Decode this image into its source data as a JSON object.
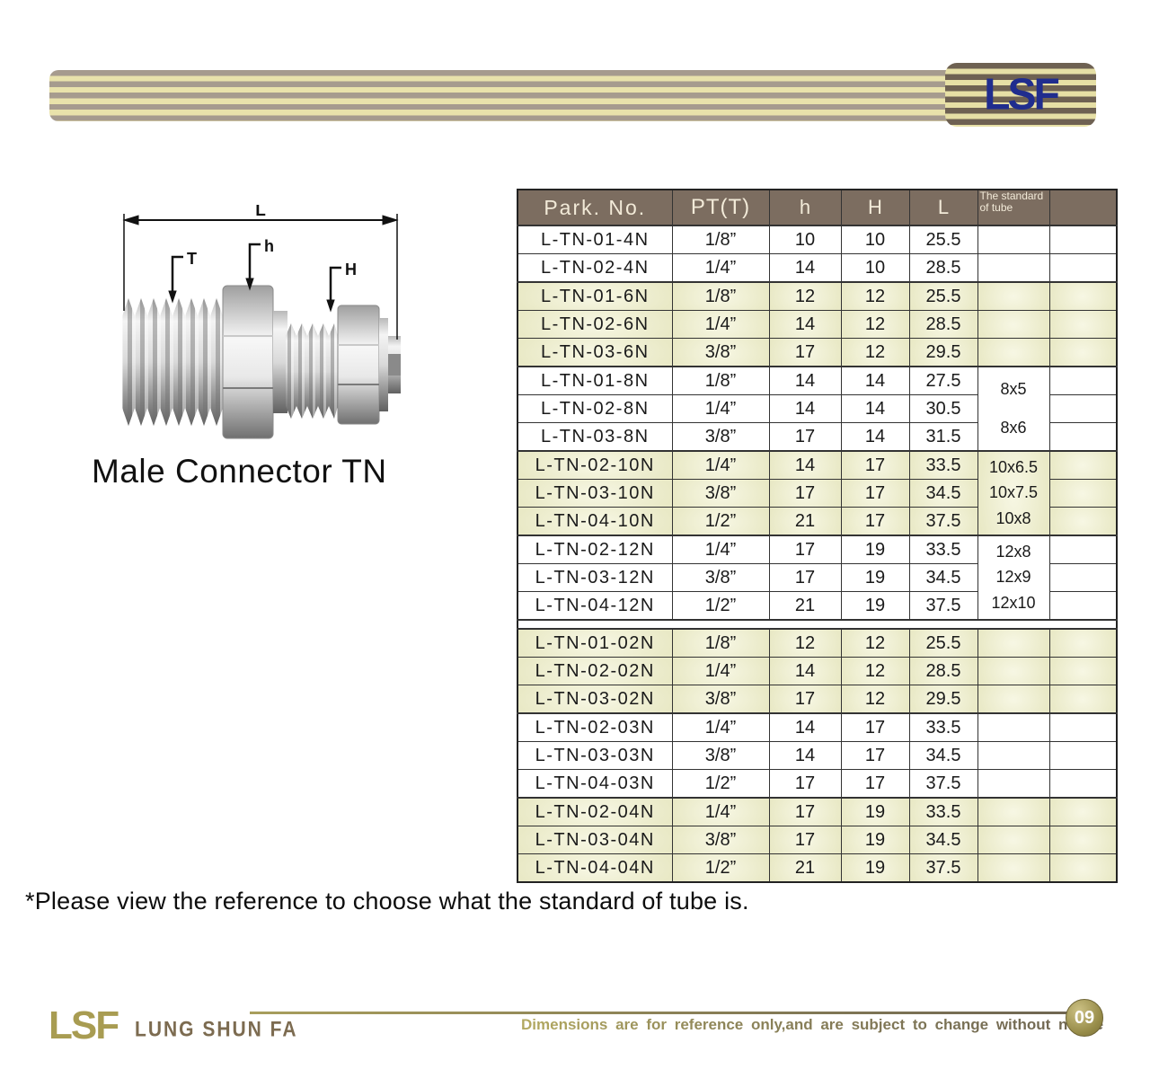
{
  "brand": {
    "logo_text": "LSF"
  },
  "product": {
    "title": "Male Connector TN",
    "dim_labels": {
      "overall": "L",
      "thread": "T",
      "hex": "h",
      "nut": "H"
    }
  },
  "table": {
    "headers": {
      "part": "Park. No.",
      "pt": "PT(T)",
      "h": "h",
      "H": "H",
      "L": "L",
      "std": "The standard of tube",
      "extra": ""
    },
    "section_break_after": 4,
    "groups": [
      {
        "shaded": false,
        "std": [],
        "rows": [
          [
            "L-TN-01-4N",
            "1/8”",
            "10",
            "10",
            "25.5"
          ],
          [
            "L-TN-02-4N",
            "1/4”",
            "14",
            "10",
            "28.5"
          ]
        ]
      },
      {
        "shaded": true,
        "std": [],
        "rows": [
          [
            "L-TN-01-6N",
            "1/8”",
            "12",
            "12",
            "25.5"
          ],
          [
            "L-TN-02-6N",
            "1/4”",
            "14",
            "12",
            "28.5"
          ],
          [
            "L-TN-03-6N",
            "3/8”",
            "17",
            "12",
            "29.5"
          ]
        ]
      },
      {
        "shaded": false,
        "std": [
          "8x5",
          "8x6"
        ],
        "rows": [
          [
            "L-TN-01-8N",
            "1/8”",
            "14",
            "14",
            "27.5"
          ],
          [
            "L-TN-02-8N",
            "1/4”",
            "14",
            "14",
            "30.5"
          ],
          [
            "L-TN-03-8N",
            "3/8”",
            "17",
            "14",
            "31.5"
          ]
        ]
      },
      {
        "shaded": true,
        "std": [
          "10x6.5",
          "10x7.5",
          "10x8"
        ],
        "rows": [
          [
            "L-TN-02-10N",
            "1/4”",
            "14",
            "17",
            "33.5"
          ],
          [
            "L-TN-03-10N",
            "3/8”",
            "17",
            "17",
            "34.5"
          ],
          [
            "L-TN-04-10N",
            "1/2”",
            "21",
            "17",
            "37.5"
          ]
        ]
      },
      {
        "shaded": false,
        "std": [
          "12x8",
          "12x9",
          "12x10"
        ],
        "rows": [
          [
            "L-TN-02-12N",
            "1/4”",
            "17",
            "19",
            "33.5"
          ],
          [
            "L-TN-03-12N",
            "3/8”",
            "17",
            "19",
            "34.5"
          ],
          [
            "L-TN-04-12N",
            "1/2”",
            "21",
            "19",
            "37.5"
          ]
        ]
      },
      {
        "shaded": true,
        "std": [],
        "rows": [
          [
            "L-TN-01-02N",
            "1/8”",
            "12",
            "12",
            "25.5"
          ],
          [
            "L-TN-02-02N",
            "1/4”",
            "14",
            "12",
            "28.5"
          ],
          [
            "L-TN-03-02N",
            "3/8”",
            "17",
            "12",
            "29.5"
          ]
        ]
      },
      {
        "shaded": false,
        "std": [],
        "rows": [
          [
            "L-TN-02-03N",
            "1/4”",
            "14",
            "17",
            "33.5"
          ],
          [
            "L-TN-03-03N",
            "3/8”",
            "14",
            "17",
            "34.5"
          ],
          [
            "L-TN-04-03N",
            "1/2”",
            "17",
            "17",
            "37.5"
          ]
        ]
      },
      {
        "shaded": true,
        "std": [],
        "rows": [
          [
            "L-TN-02-04N",
            "1/4”",
            "17",
            "19",
            "33.5"
          ],
          [
            "L-TN-03-04N",
            "3/8”",
            "17",
            "19",
            "34.5"
          ],
          [
            "L-TN-04-04N",
            "1/2”",
            "21",
            "19",
            "37.5"
          ]
        ]
      }
    ]
  },
  "note": {
    "text": "*Please view the reference to choose what the standard of tube is."
  },
  "footer": {
    "logo_text": "LSF",
    "company": "LUNG SHUN FA",
    "disclaimer": "Dimensions are for reference only,and are subject to change without notice",
    "page": "09"
  },
  "colors": {
    "header_bg": "#7c6d60",
    "row_shade": "#e9e9c6",
    "logo_navy": "#202d8e",
    "stripe_tan": "#a69b8e",
    "stripe_cream": "#e9e2ab",
    "footer_olive": "#a89c52",
    "footer_brown": "#7c6b50",
    "badge_gold": "#968b48"
  }
}
